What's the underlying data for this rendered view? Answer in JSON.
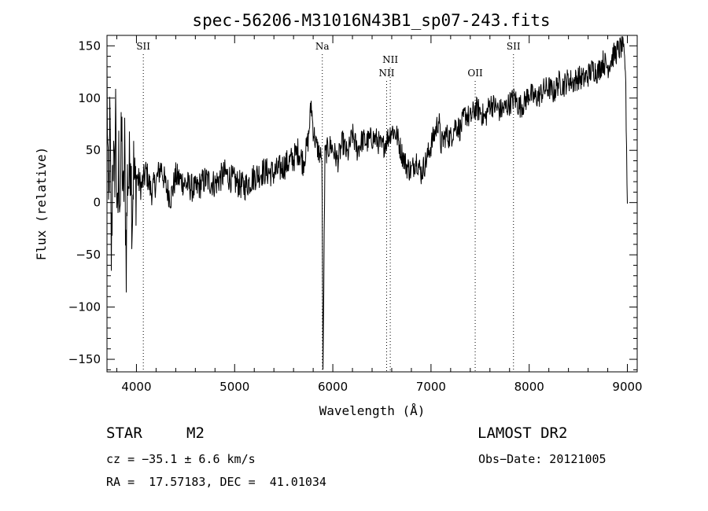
{
  "chart_data": {
    "type": "line",
    "title": "spec-56206-M31016N43B1_sp07-243.fits",
    "xlabel": "Wavelength (Å)",
    "ylabel": "Flux (relative)",
    "xlim": [
      3700,
      9100
    ],
    "ylim": [
      -162,
      160
    ],
    "xticks": [
      4000,
      5000,
      6000,
      7000,
      8000,
      9000
    ],
    "yticks": [
      -150,
      -100,
      -50,
      0,
      50,
      100,
      150
    ],
    "grid": false,
    "legend": "none",
    "line_color": "#000000",
    "series": [
      {
        "x": [
          3700,
          3715,
          3730,
          3745,
          3760,
          3775,
          3790,
          3805,
          3820,
          3835,
          3850,
          3865,
          3880,
          3895,
          3910,
          3925,
          3940,
          3955,
          3970,
          3985,
          4000,
          4050,
          4100,
          4150,
          4200,
          4250,
          4300,
          4350,
          4400,
          4500,
          4600,
          4700,
          4800,
          4900,
          5000,
          5100,
          5200,
          5300,
          5400,
          5500,
          5600,
          5650,
          5700,
          5750,
          5780,
          5800,
          5830,
          5860,
          5890,
          5900,
          5920,
          5940,
          5980,
          6050,
          6100,
          6150,
          6200,
          6250,
          6300,
          6350,
          6400,
          6450,
          6500,
          6550,
          6600,
          6650,
          6700,
          6750,
          6800,
          6850,
          6900,
          6950,
          7000,
          7050,
          7080,
          7100,
          7150,
          7200,
          7250,
          7300,
          7350,
          7400,
          7450,
          7500,
          7550,
          7600,
          7650,
          7700,
          7750,
          7800,
          7850,
          7900,
          7950,
          8000,
          8050,
          8100,
          8150,
          8200,
          8250,
          8300,
          8350,
          8400,
          8450,
          8500,
          8550,
          8600,
          8650,
          8700,
          8750,
          8800,
          8850,
          8900,
          8950,
          8980,
          9000
        ],
        "y": [
          120,
          -20,
          80,
          -60,
          60,
          10,
          100,
          -40,
          40,
          5,
          70,
          -10,
          50,
          -55,
          30,
          20,
          60,
          -15,
          35,
          10,
          25,
          15,
          30,
          10,
          20,
          35,
          15,
          5,
          25,
          18,
          12,
          22,
          18,
          28,
          20,
          15,
          25,
          30,
          28,
          35,
          42,
          50,
          38,
          60,
          95,
          70,
          55,
          48,
          40,
          -160,
          45,
          50,
          55,
          40,
          58,
          45,
          65,
          50,
          60,
          58,
          62,
          60,
          52,
          60,
          70,
          65,
          48,
          35,
          30,
          42,
          28,
          40,
          55,
          70,
          80,
          55,
          65,
          62,
          75,
          70,
          85,
          80,
          90,
          88,
          80,
          95,
          92,
          88,
          90,
          95,
          100,
          92,
          95,
          105,
          100,
          102,
          108,
          110,
          105,
          115,
          112,
          118,
          115,
          120,
          118,
          122,
          128,
          125,
          135,
          130,
          140,
          145,
          150,
          130,
          0
        ]
      }
    ],
    "annotations": [
      {
        "label": "SII",
        "x": 4070,
        "row": 1
      },
      {
        "label": "Na",
        "x": 5893,
        "row": 1
      },
      {
        "label": "NII",
        "x": 6585,
        "row": 2
      },
      {
        "label": "NII",
        "x": 6548,
        "row": 3
      },
      {
        "label": "OII",
        "x": 7450,
        "row": 3
      },
      {
        "label": "SII",
        "x": 7840,
        "row": 1
      }
    ]
  },
  "info": {
    "object_class": "STAR",
    "subclass": "M2",
    "survey": "LAMOST DR2",
    "cz": "cz = −35.1 ± 6.6 km/s",
    "obs_date": "Obs−Date: 20121005",
    "radec": "RA =  17.57183, DEC =  41.01034"
  }
}
